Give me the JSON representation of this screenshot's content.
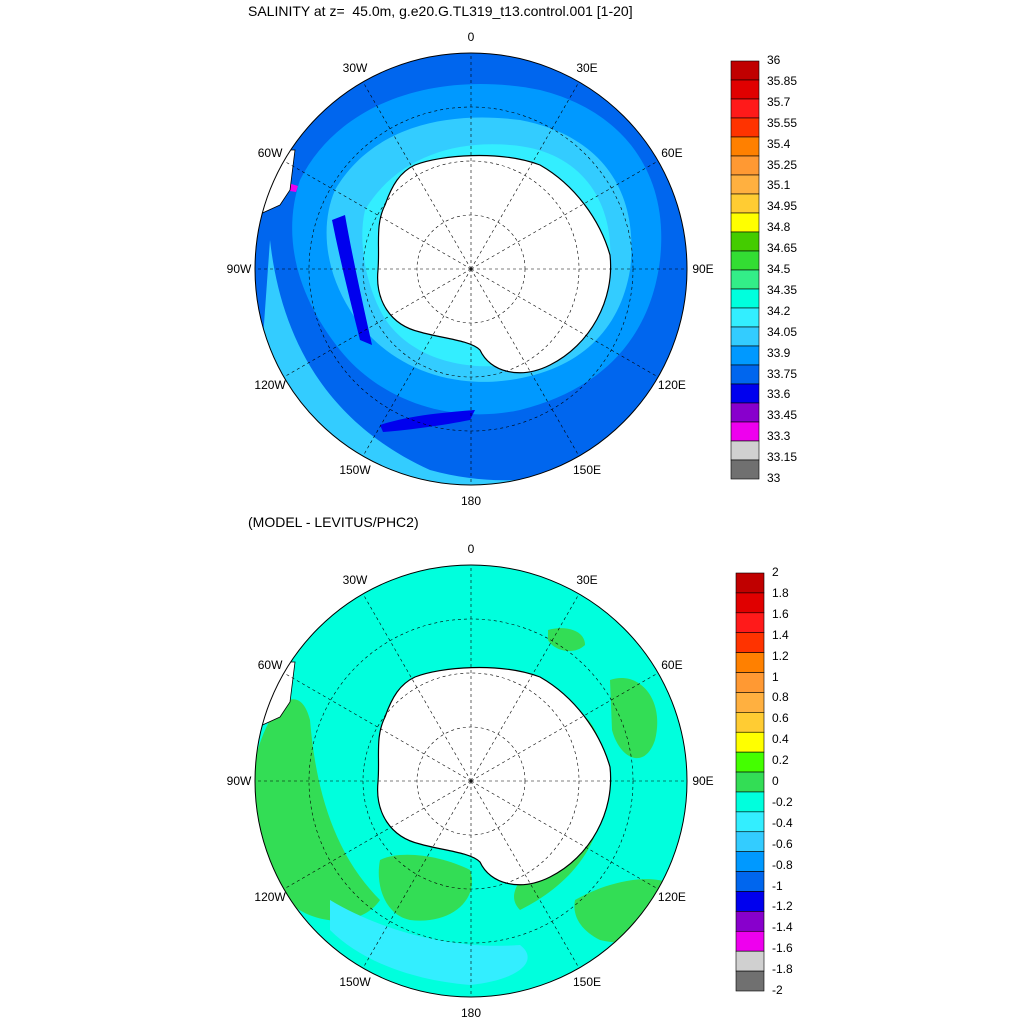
{
  "panel1": {
    "title": "SALINITY at z=  45.0m, g.e20.G.TL319_t13.control.001 [1-20]",
    "lon_labels": [
      "0",
      "30E",
      "60E",
      "90E",
      "120E",
      "150E",
      "180",
      "150W",
      "120W",
      "90W",
      "60W",
      "30W"
    ],
    "colorbar": {
      "labels": [
        "36",
        "35.85",
        "35.7",
        "35.55",
        "35.4",
        "35.25",
        "35.1",
        "34.95",
        "34.8",
        "34.65",
        "34.5",
        "34.35",
        "34.2",
        "34.05",
        "33.9",
        "33.75",
        "33.6",
        "33.45",
        "33.3",
        "33.15",
        "33"
      ],
      "colors": [
        "#c00000",
        "#e00000",
        "#ff1a1a",
        "#ff3300",
        "#ff8000",
        "#ff9933",
        "#ffb040",
        "#ffcc33",
        "#ffff00",
        "#44cc00",
        "#33dd33",
        "#33ee88",
        "#00ffdd",
        "#33eeff",
        "#33ccff",
        "#0099ff",
        "#0066ee",
        "#0000ee",
        "#8800cc",
        "#ee00ee",
        "#d0d0d0",
        "#707070"
      ]
    }
  },
  "panel2": {
    "title": "(MODEL - LEVITUS/PHC2)",
    "lon_labels": [
      "0",
      "30E",
      "60E",
      "90E",
      "120E",
      "150E",
      "180",
      "150W",
      "120W",
      "90W",
      "60W",
      "30W"
    ],
    "colorbar": {
      "labels": [
        "2",
        "1.8",
        "1.6",
        "1.4",
        "1.2",
        "1",
        "0.8",
        "0.6",
        "0.4",
        "0.2",
        "0",
        "-0.2",
        "-0.4",
        "-0.6",
        "-0.8",
        "-1",
        "-1.2",
        "-1.4",
        "-1.6",
        "-1.8",
        "-2"
      ],
      "colors": [
        "#c00000",
        "#e00000",
        "#ff1a1a",
        "#ff3300",
        "#ff8000",
        "#ff9933",
        "#ffb040",
        "#ffcc33",
        "#ffff00",
        "#44ff00",
        "#33dd55",
        "#00ffdd",
        "#33eeff",
        "#33ccff",
        "#0099ff",
        "#0066ee",
        "#0000ee",
        "#8800cc",
        "#ee00ee",
        "#d0d0d0",
        "#707070"
      ]
    }
  },
  "colors": {
    "ice_shelf": "#ffffff",
    "land_outline": "#000000"
  }
}
